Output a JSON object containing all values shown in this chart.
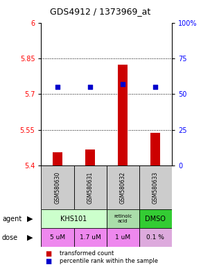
{
  "title": "GDS4912 / 1373969_at",
  "samples": [
    "GSM580630",
    "GSM580631",
    "GSM580632",
    "GSM580633"
  ],
  "bar_values": [
    5.455,
    5.468,
    5.825,
    5.537
  ],
  "bar_bottom": 5.4,
  "percentile_values": [
    55,
    55,
    57,
    55
  ],
  "left_yticks": [
    5.4,
    5.55,
    5.7,
    5.85,
    6.0
  ],
  "left_ytick_labels": [
    "5.4",
    "5.55",
    "5.7",
    "5.85",
    "6"
  ],
  "ylim": [
    5.4,
    6.0
  ],
  "bar_color": "#cc0000",
  "dot_color": "#0000cc",
  "agent_khs_color": "#ccffcc",
  "agent_retinoic_color": "#aaddaa",
  "agent_dmso_color": "#33cc33",
  "dose_colors": [
    "#ee88ee",
    "#ee88ee",
    "#ee88ee",
    "#ddaadd"
  ],
  "dose_labels": [
    "5 uM",
    "1.7 uM",
    "1 uM",
    "0.1 %"
  ],
  "sample_bg_color": "#cccccc",
  "legend_bar_color": "#cc0000",
  "legend_dot_color": "#0000cc",
  "grid_lines_pct": [
    25,
    50,
    75
  ]
}
